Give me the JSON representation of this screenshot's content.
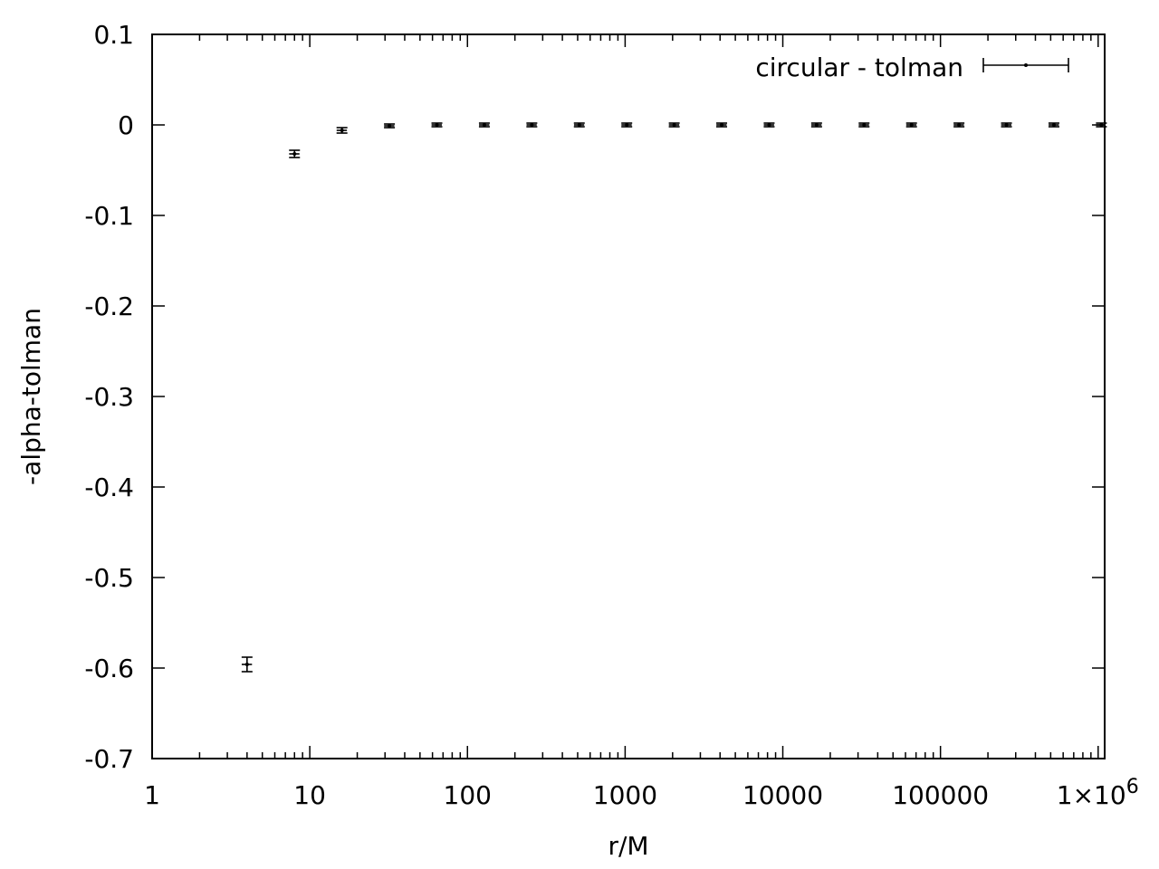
{
  "chart_data": {
    "type": "scatter",
    "title": "",
    "xlabel": "r/M",
    "ylabel": "-alpha-tolman",
    "xscale": "log",
    "xlim": [
      1,
      1100000
    ],
    "ylim": [
      -0.7,
      0.1
    ],
    "grid": false,
    "legend_position": "top-right",
    "x_tick_labels": [
      "1",
      "10",
      "100",
      "1000",
      "10000",
      "100000",
      "1×10⁶"
    ],
    "y_tick_labels": [
      "0.1",
      "0",
      "-0.1",
      "-0.2",
      "-0.3",
      "-0.4",
      "-0.5",
      "-0.6",
      "-0.7"
    ],
    "series": [
      {
        "name": "circular - tolman",
        "color": "#000000",
        "x": [
          4,
          8,
          16,
          32,
          64,
          128,
          256,
          512,
          1024,
          2048,
          4096,
          8192,
          16384,
          32768,
          65536,
          131072,
          262144,
          524288,
          1048576
        ],
        "y": [
          -0.596,
          -0.032,
          -0.006,
          -0.001,
          0,
          0,
          0,
          0,
          0,
          0,
          0,
          0,
          0,
          0,
          0,
          0,
          0,
          0,
          0
        ],
        "x_err": [
          0.3,
          0.6,
          1.2,
          2.4,
          4.8,
          9.6,
          19,
          38,
          77,
          154,
          307,
          614,
          1229,
          2458,
          4915,
          9830,
          19661,
          39322,
          78643
        ],
        "y_err": [
          0.007,
          0.003,
          0.002,
          0.001,
          0.001,
          0.001,
          0.001,
          0.001,
          0.001,
          0.001,
          0.001,
          0.001,
          0.001,
          0.001,
          0.001,
          0.001,
          0.001,
          0.001,
          0.001
        ]
      }
    ]
  }
}
